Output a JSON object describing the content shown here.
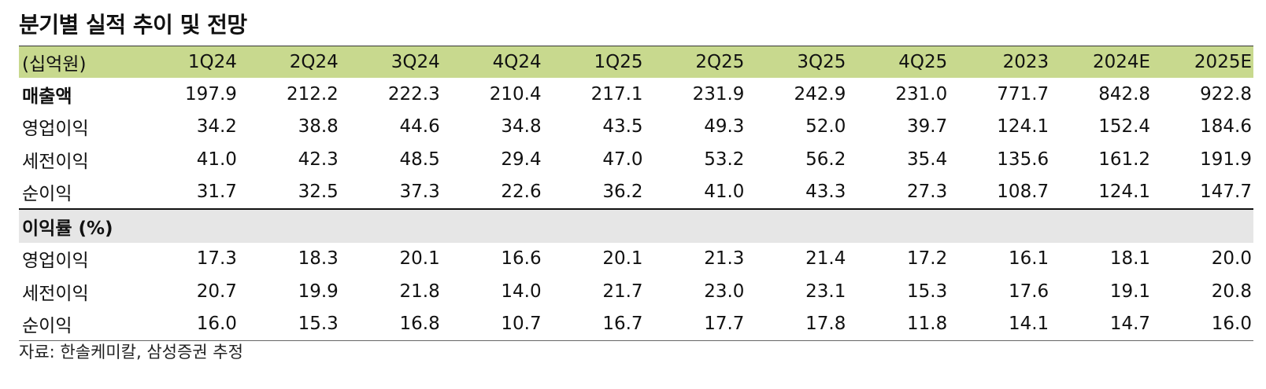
{
  "title": "분기별 실적 추이 및 전망",
  "table": {
    "unit_label": "(십억원)",
    "columns": [
      "1Q24",
      "2Q24",
      "3Q24",
      "4Q24",
      "1Q25",
      "2Q25",
      "3Q25",
      "4Q25",
      "2023",
      "2024E",
      "2025E"
    ],
    "rows": [
      {
        "label": "매출액",
        "values": [
          "197.9",
          "212.2",
          "222.3",
          "210.4",
          "217.1",
          "231.9",
          "242.9",
          "231.0",
          "771.7",
          "842.8",
          "922.8"
        ]
      },
      {
        "label": "영업이익",
        "values": [
          "34.2",
          "38.8",
          "44.6",
          "34.8",
          "43.5",
          "49.3",
          "52.0",
          "39.7",
          "124.1",
          "152.4",
          "184.6"
        ]
      },
      {
        "label": "세전이익",
        "values": [
          "41.0",
          "42.3",
          "48.5",
          "29.4",
          "47.0",
          "53.2",
          "56.2",
          "35.4",
          "135.6",
          "161.2",
          "191.9"
        ]
      },
      {
        "label": "순이익",
        "values": [
          "31.7",
          "32.5",
          "37.3",
          "22.6",
          "36.2",
          "41.0",
          "43.3",
          "27.3",
          "108.7",
          "124.1",
          "147.7"
        ]
      }
    ],
    "margin_section_label": "이익률 (%)",
    "margin_rows": [
      {
        "label": "영업이익",
        "values": [
          "17.3",
          "18.3",
          "20.1",
          "16.6",
          "20.1",
          "21.3",
          "21.4",
          "17.2",
          "16.1",
          "18.1",
          "20.0"
        ]
      },
      {
        "label": "세전이익",
        "values": [
          "20.7",
          "19.9",
          "21.8",
          "14.0",
          "21.7",
          "23.0",
          "23.1",
          "15.3",
          "17.6",
          "19.1",
          "20.8"
        ]
      },
      {
        "label": "순이익",
        "values": [
          "16.0",
          "15.3",
          "16.8",
          "10.7",
          "16.7",
          "17.7",
          "17.8",
          "11.8",
          "14.1",
          "14.7",
          "16.0"
        ]
      }
    ]
  },
  "source": "자료: 한솔케미칼, 삼성증권 추정",
  "colors": {
    "header_bg": "#c8d98e",
    "section_bg": "#e6e6e6"
  }
}
